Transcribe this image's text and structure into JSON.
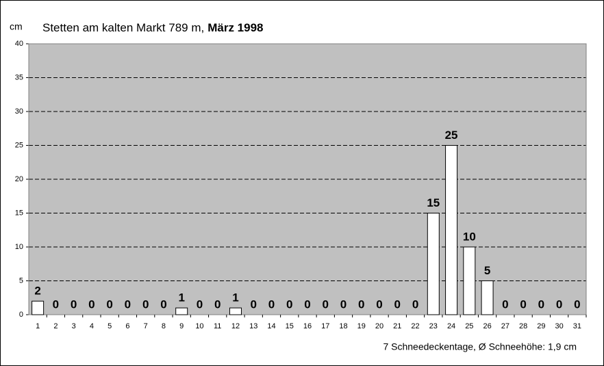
{
  "chart_data": {
    "type": "bar",
    "title": "Stetten am kalten Markt  789 m,",
    "title_date": "März 1998",
    "y_label": "cm",
    "note": "7 Schneedeckentage,  Ø Schneehöhe:  1,9 cm",
    "categories": [
      "1",
      "2",
      "3",
      "4",
      "5",
      "6",
      "7",
      "8",
      "9",
      "10",
      "11",
      "12",
      "13",
      "14",
      "15",
      "16",
      "17",
      "18",
      "19",
      "20",
      "21",
      "22",
      "23",
      "24",
      "25",
      "26",
      "27",
      "28",
      "29",
      "30",
      "31"
    ],
    "values": [
      2,
      0,
      0,
      0,
      0,
      0,
      0,
      0,
      1,
      0,
      0,
      1,
      0,
      0,
      0,
      0,
      0,
      0,
      0,
      0,
      0,
      0,
      15,
      25,
      10,
      5,
      0,
      0,
      0,
      0,
      0
    ],
    "color": "#ffffff",
    "background": "#c0c0c0",
    "ylim": [
      0,
      40
    ],
    "yticks": [
      0,
      5,
      10,
      15,
      20,
      25,
      30,
      35,
      40
    ],
    "grid": true
  }
}
